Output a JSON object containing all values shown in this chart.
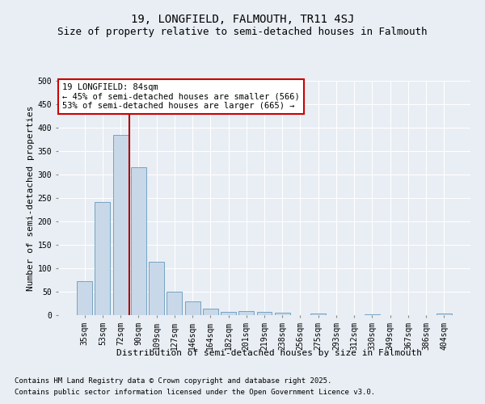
{
  "title_line1": "19, LONGFIELD, FALMOUTH, TR11 4SJ",
  "title_line2": "Size of property relative to semi-detached houses in Falmouth",
  "xlabel": "Distribution of semi-detached houses by size in Falmouth",
  "ylabel": "Number of semi-detached properties",
  "annotation_title": "19 LONGFIELD: 84sqm",
  "annotation_line2": "← 45% of semi-detached houses are smaller (566)",
  "annotation_line3": "53% of semi-detached houses are larger (665) →",
  "footnote1": "Contains HM Land Registry data © Crown copyright and database right 2025.",
  "footnote2": "Contains public sector information licensed under the Open Government Licence v3.0.",
  "categories": [
    "35sqm",
    "53sqm",
    "72sqm",
    "90sqm",
    "109sqm",
    "127sqm",
    "146sqm",
    "164sqm",
    "182sqm",
    "201sqm",
    "219sqm",
    "238sqm",
    "256sqm",
    "275sqm",
    "293sqm",
    "312sqm",
    "330sqm",
    "349sqm",
    "367sqm",
    "386sqm",
    "404sqm"
  ],
  "values": [
    72,
    241,
    385,
    315,
    113,
    50,
    29,
    13,
    7,
    8,
    7,
    6,
    0,
    3,
    0,
    0,
    1,
    0,
    0,
    0,
    3
  ],
  "bar_color": "#c8d8e8",
  "bar_edge_color": "#6699bb",
  "vline_x": 2.5,
  "vline_color": "#aa0000",
  "annotation_box_edge_color": "#cc0000",
  "annotation_box_face_color": "#ffffff",
  "bg_color": "#e8eef4",
  "plot_bg_color": "#e8eef4",
  "grid_color": "#ffffff",
  "ylim": [
    0,
    500
  ],
  "yticks": [
    0,
    50,
    100,
    150,
    200,
    250,
    300,
    350,
    400,
    450,
    500
  ],
  "title_fontsize": 10,
  "subtitle_fontsize": 9,
  "axis_label_fontsize": 8,
  "tick_fontsize": 7,
  "annotation_fontsize": 7.5,
  "footnote_fontsize": 6.5
}
